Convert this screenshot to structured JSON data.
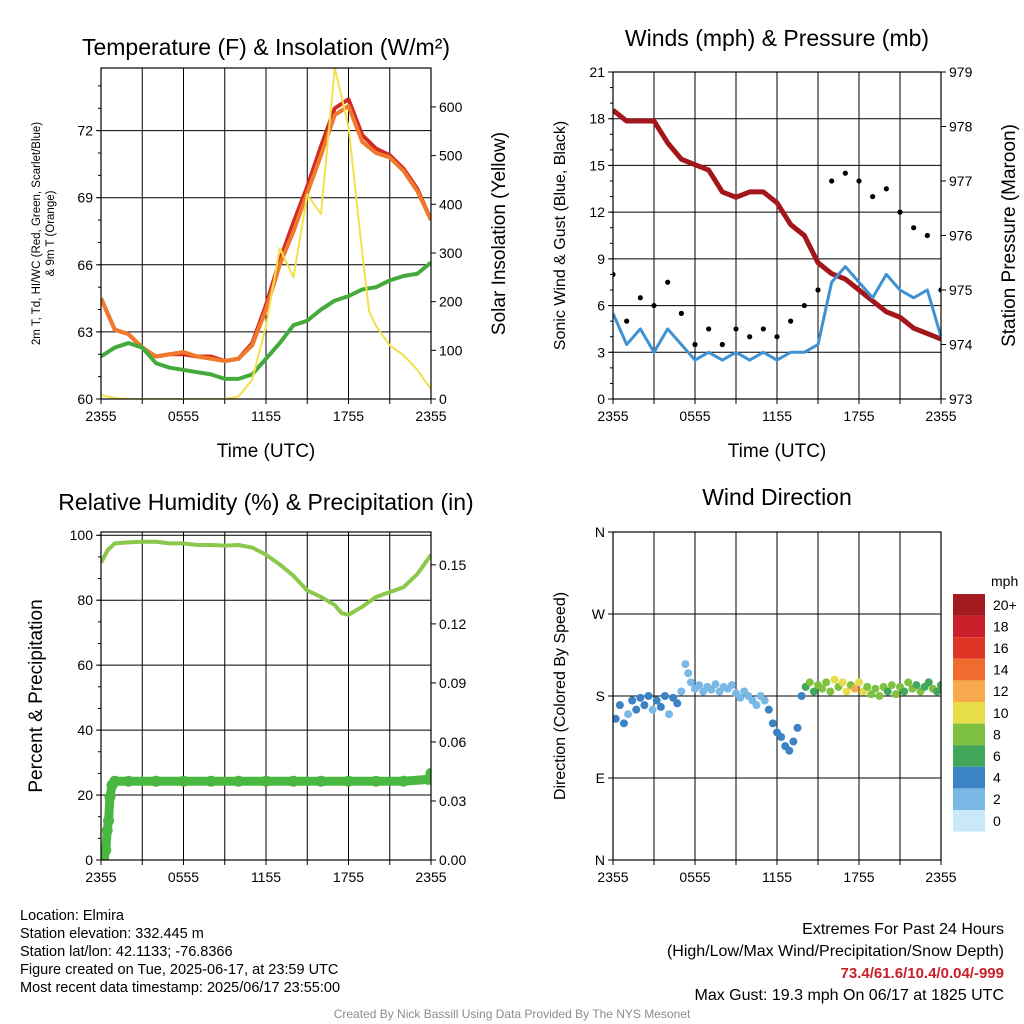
{
  "colors": {
    "red": "#d22b25",
    "orange": "#f07a2c",
    "green": "#44aa3c",
    "yellow": "#f4e04d",
    "maroon": "#a3161b",
    "wind_blue": "#3f92d1",
    "gust": "#000000",
    "rh_green": "#8cc84b",
    "precip_green": "#4ab840"
  },
  "chart_data": [
    {
      "type": "line",
      "title": "Temperature (F) & Insolation (W/m²)",
      "xlabel": "Time (UTC)",
      "ylabel_left": "2m T, Td, HI/WC (Red, Green, Scarlet/Blue) & 9m T (Orange)",
      "ylabel_right": "Solar Insolation (Yellow)",
      "x_ticks": [
        "2355",
        "0555",
        "1155",
        "1755",
        "2355"
      ],
      "y_ticks_left": [
        "60",
        "63",
        "66",
        "69",
        "72"
      ],
      "y_ticks_right": [
        "0",
        "100",
        "200",
        "300",
        "400",
        "500",
        "600"
      ],
      "ylim_left": [
        60,
        74.8
      ],
      "ylim_right": [
        0,
        680
      ],
      "grid": true,
      "series": [
        {
          "axis": "left",
          "color": "red",
          "x": [
            0,
            1,
            2,
            3,
            4,
            5,
            6,
            7,
            8,
            9,
            10,
            11,
            12,
            13,
            14,
            15,
            16,
            17,
            18,
            19,
            20,
            21,
            22,
            23,
            24
          ],
          "values": [
            64.5,
            63.1,
            62.9,
            62.3,
            61.9,
            62.0,
            62.0,
            61.9,
            61.9,
            61.7,
            61.8,
            62.5,
            64.2,
            66.2,
            67.9,
            69.5,
            71.3,
            73.0,
            73.4,
            71.8,
            71.2,
            70.9,
            70.3,
            69.4,
            68.0
          ]
        },
        {
          "axis": "left",
          "color": "orange",
          "x": [
            0,
            1,
            2,
            3,
            4,
            5,
            6,
            7,
            8,
            9,
            10,
            11,
            12,
            13,
            14,
            15,
            16,
            17,
            18,
            19,
            20,
            21,
            22,
            23,
            24
          ],
          "values": [
            64.5,
            63.1,
            62.9,
            62.3,
            61.9,
            62.0,
            62.1,
            61.9,
            61.8,
            61.7,
            61.8,
            62.4,
            64.0,
            66.0,
            67.5,
            69.2,
            70.9,
            72.7,
            73.1,
            71.5,
            71.0,
            70.8,
            70.2,
            69.3,
            68.0
          ]
        },
        {
          "axis": "left",
          "color": "green",
          "x": [
            0,
            1,
            2,
            3,
            4,
            5,
            6,
            7,
            8,
            9,
            10,
            11,
            12,
            13,
            14,
            15,
            16,
            17,
            18,
            19,
            20,
            21,
            22,
            23,
            24
          ],
          "values": [
            61.9,
            62.3,
            62.5,
            62.3,
            61.6,
            61.4,
            61.3,
            61.2,
            61.1,
            60.9,
            60.9,
            61.1,
            61.8,
            62.5,
            63.3,
            63.5,
            64.0,
            64.4,
            64.6,
            64.9,
            65.0,
            65.3,
            65.5,
            65.6,
            66.1
          ]
        },
        {
          "axis": "right",
          "color": "yellow",
          "x": [
            0,
            1,
            2,
            3,
            4,
            5,
            6,
            7,
            8,
            9,
            10,
            11,
            12,
            13,
            14,
            15,
            16,
            17,
            17.5,
            18,
            19,
            19.5,
            20,
            21,
            22,
            23,
            24
          ],
          "values": [
            8,
            2,
            0,
            0,
            0,
            0,
            0,
            0,
            0,
            0,
            5,
            40,
            150,
            310,
            250,
            420,
            380,
            680,
            620,
            560,
            300,
            180,
            150,
            110,
            90,
            60,
            20
          ]
        }
      ]
    },
    {
      "type": "line",
      "title": "Winds (mph) & Pressure (mb)",
      "xlabel": "Time (UTC)",
      "ylabel_left": "Sonic Wind & Gust (Blue, Black)",
      "ylabel_right": "Station Pressure (Maroon)",
      "x_ticks": [
        "2355",
        "0555",
        "1155",
        "1755",
        "2355"
      ],
      "y_ticks_left": [
        "0",
        "3",
        "6",
        "9",
        "12",
        "15",
        "18",
        "21"
      ],
      "y_ticks_right": [
        "973",
        "974",
        "975",
        "976",
        "977",
        "978",
        "979"
      ],
      "ylim_left": [
        0,
        21
      ],
      "ylim_right": [
        973,
        979
      ],
      "grid": true,
      "series": [
        {
          "axis": "right",
          "color": "maroon",
          "x": [
            0,
            1,
            2,
            3,
            4,
            5,
            6,
            7,
            8,
            9,
            10,
            11,
            12,
            13,
            14,
            15,
            16,
            17,
            18,
            19,
            20,
            21,
            22,
            23,
            24
          ],
          "values": [
            978.3,
            978.1,
            978.1,
            978.1,
            977.7,
            977.4,
            977.3,
            977.2,
            976.8,
            976.7,
            976.8,
            976.8,
            976.6,
            976.2,
            976.0,
            975.5,
            975.3,
            975.2,
            975.0,
            974.8,
            974.6,
            974.5,
            974.3,
            974.2,
            974.1
          ]
        },
        {
          "axis": "left",
          "color": "wind_blue",
          "x": [
            0,
            1,
            2,
            3,
            4,
            5,
            6,
            7,
            8,
            9,
            10,
            11,
            12,
            13,
            14,
            15,
            16,
            17,
            18,
            19,
            20,
            21,
            22,
            23,
            24
          ],
          "values": [
            5.5,
            3.5,
            4.5,
            3.0,
            4.5,
            3.5,
            2.5,
            3.0,
            2.5,
            3.0,
            2.5,
            3.0,
            2.5,
            3.0,
            3.0,
            3.5,
            7.5,
            8.5,
            7.5,
            6.5,
            8.0,
            7.0,
            6.5,
            7.0,
            4.0
          ]
        },
        {
          "axis": "left",
          "color": "gust",
          "x": [
            0,
            1,
            2,
            3,
            4,
            5,
            6,
            7,
            8,
            9,
            10,
            11,
            12,
            13,
            14,
            15,
            16,
            17,
            18,
            19,
            20,
            21,
            22,
            23,
            24
          ],
          "values": [
            8.0,
            5.0,
            6.5,
            6.0,
            7.5,
            5.5,
            3.5,
            4.5,
            3.5,
            4.5,
            4.0,
            4.5,
            4.0,
            5.0,
            6.0,
            7.0,
            14.0,
            14.5,
            14.0,
            13.0,
            13.5,
            12.0,
            11.0,
            10.5,
            7.0
          ]
        }
      ]
    },
    {
      "type": "line",
      "title": "Relative Humidity (%) & Precipitation (in)",
      "ylabel_left": "Percent & Precipitation",
      "x_ticks": [
        "2355",
        "0555",
        "1155",
        "1755",
        "2355"
      ],
      "y_ticks_left": [
        "0",
        "20",
        "40",
        "60",
        "80",
        "100"
      ],
      "y_ticks_right": [
        "0.00",
        "0.03",
        "0.06",
        "0.09",
        "0.12",
        "0.15"
      ],
      "ylim_left": [
        0,
        101
      ],
      "ylim_right": [
        0,
        0.1667
      ],
      "grid": true,
      "series": [
        {
          "axis": "left",
          "color": "rh_green",
          "x": [
            0,
            0.5,
            1,
            2,
            3,
            4,
            5,
            6,
            7,
            8,
            9,
            10,
            11,
            12,
            13,
            14,
            15,
            16,
            17,
            17.5,
            18,
            19,
            20,
            21,
            22,
            23,
            24
          ],
          "values": [
            91.5,
            95.5,
            97.5,
            97.8,
            98.0,
            98.0,
            97.5,
            97.5,
            97.0,
            97.0,
            96.8,
            97.0,
            96.2,
            94.0,
            91.0,
            87.5,
            83.0,
            81.0,
            78.5,
            76.0,
            75.5,
            78.0,
            81.0,
            82.5,
            84.0,
            88.0,
            94.0
          ]
        },
        {
          "axis": "right",
          "color": "precip_green",
          "x": [
            0,
            0.2,
            0.35,
            0.45,
            0.55,
            0.65,
            0.8,
            1,
            2,
            4,
            6,
            8,
            10,
            12,
            14,
            16,
            18,
            20,
            22,
            23.8,
            24
          ],
          "values": [
            0.0,
            0.0,
            0.005,
            0.015,
            0.02,
            0.032,
            0.038,
            0.04,
            0.04,
            0.04,
            0.04,
            0.04,
            0.04,
            0.04,
            0.04,
            0.04,
            0.04,
            0.04,
            0.04,
            0.041,
            0.044
          ]
        }
      ]
    },
    {
      "type": "scatter",
      "title": "Wind Direction",
      "ylabel_left": "Direction (Colored By Speed)",
      "x_ticks": [
        "2355",
        "0555",
        "1155",
        "1755",
        "2355"
      ],
      "y_ticks_left": [
        "N",
        "E",
        "S",
        "W",
        "N"
      ],
      "ylim_left": [
        0,
        360
      ],
      "grid": true,
      "legend": {
        "title": "mph",
        "placement": "right",
        "labels": [
          "20+",
          "18",
          "16",
          "14",
          "12",
          "10",
          "8",
          "6",
          "4",
          "2",
          "0"
        ],
        "colors": [
          "#a31a1f",
          "#c8202b",
          "#de3426",
          "#ef6c2e",
          "#f9a94d",
          "#e8de4a",
          "#7fc241",
          "#42a65b",
          "#3c83c4",
          "#7ab8e6",
          "#c9e8f8"
        ]
      },
      "points": [
        {
          "x": 0.2,
          "dir": 155,
          "speed": 3
        },
        {
          "x": 0.5,
          "dir": 170,
          "speed": 4
        },
        {
          "x": 0.8,
          "dir": 150,
          "speed": 3
        },
        {
          "x": 1.1,
          "dir": 160,
          "speed": 2
        },
        {
          "x": 1.4,
          "dir": 175,
          "speed": 4
        },
        {
          "x": 1.7,
          "dir": 165,
          "speed": 3
        },
        {
          "x": 2.0,
          "dir": 178,
          "speed": 4
        },
        {
          "x": 2.3,
          "dir": 170,
          "speed": 3
        },
        {
          "x": 2.6,
          "dir": 180,
          "speed": 4
        },
        {
          "x": 2.9,
          "dir": 165,
          "speed": 2
        },
        {
          "x": 3.2,
          "dir": 175,
          "speed": 4
        },
        {
          "x": 3.5,
          "dir": 168,
          "speed": 3
        },
        {
          "x": 3.8,
          "dir": 180,
          "speed": 4
        },
        {
          "x": 4.1,
          "dir": 160,
          "speed": 2
        },
        {
          "x": 4.4,
          "dir": 178,
          "speed": 3
        },
        {
          "x": 4.7,
          "dir": 172,
          "speed": 4
        },
        {
          "x": 5.0,
          "dir": 185,
          "speed": 2
        },
        {
          "x": 5.3,
          "dir": 215,
          "speed": 1
        },
        {
          "x": 5.5,
          "dir": 205,
          "speed": 2
        },
        {
          "x": 5.7,
          "dir": 195,
          "speed": 2
        },
        {
          "x": 6.0,
          "dir": 188,
          "speed": 2
        },
        {
          "x": 6.3,
          "dir": 192,
          "speed": 2
        },
        {
          "x": 6.6,
          "dir": 185,
          "speed": 2
        },
        {
          "x": 6.9,
          "dir": 190,
          "speed": 2
        },
        {
          "x": 7.2,
          "dir": 187,
          "speed": 2
        },
        {
          "x": 7.5,
          "dir": 193,
          "speed": 2
        },
        {
          "x": 7.8,
          "dir": 185,
          "speed": 2
        },
        {
          "x": 8.1,
          "dir": 190,
          "speed": 2
        },
        {
          "x": 8.4,
          "dir": 188,
          "speed": 2
        },
        {
          "x": 8.7,
          "dir": 192,
          "speed": 2
        },
        {
          "x": 9.0,
          "dir": 183,
          "speed": 2
        },
        {
          "x": 9.3,
          "dir": 178,
          "speed": 2
        },
        {
          "x": 9.6,
          "dir": 185,
          "speed": 2
        },
        {
          "x": 9.9,
          "dir": 180,
          "speed": 2
        },
        {
          "x": 10.2,
          "dir": 175,
          "speed": 2
        },
        {
          "x": 10.5,
          "dir": 170,
          "speed": 2
        },
        {
          "x": 10.8,
          "dir": 180,
          "speed": 2
        },
        {
          "x": 11.1,
          "dir": 175,
          "speed": 2
        },
        {
          "x": 11.4,
          "dir": 165,
          "speed": 3
        },
        {
          "x": 11.7,
          "dir": 150,
          "speed": 3
        },
        {
          "x": 12.0,
          "dir": 140,
          "speed": 3
        },
        {
          "x": 12.3,
          "dir": 135,
          "speed": 4
        },
        {
          "x": 12.6,
          "dir": 125,
          "speed": 4
        },
        {
          "x": 12.9,
          "dir": 120,
          "speed": 4
        },
        {
          "x": 13.2,
          "dir": 130,
          "speed": 3
        },
        {
          "x": 13.5,
          "dir": 145,
          "speed": 4
        },
        {
          "x": 13.8,
          "dir": 180,
          "speed": 3
        },
        {
          "x": 14.1,
          "dir": 190,
          "speed": 5
        },
        {
          "x": 14.4,
          "dir": 195,
          "speed": 7
        },
        {
          "x": 14.7,
          "dir": 185,
          "speed": 6
        },
        {
          "x": 15.0,
          "dir": 192,
          "speed": 7
        },
        {
          "x": 15.3,
          "dir": 188,
          "speed": 8
        },
        {
          "x": 15.6,
          "dir": 195,
          "speed": 8
        },
        {
          "x": 15.9,
          "dir": 185,
          "speed": 7
        },
        {
          "x": 16.2,
          "dir": 198,
          "speed": 9
        },
        {
          "x": 16.5,
          "dir": 190,
          "speed": 8
        },
        {
          "x": 16.8,
          "dir": 195,
          "speed": 10
        },
        {
          "x": 17.1,
          "dir": 185,
          "speed": 9
        },
        {
          "x": 17.4,
          "dir": 192,
          "speed": 8
        },
        {
          "x": 17.7,
          "dir": 188,
          "speed": 11
        },
        {
          "x": 18.0,
          "dir": 195,
          "speed": 10
        },
        {
          "x": 18.3,
          "dir": 185,
          "speed": 9
        },
        {
          "x": 18.6,
          "dir": 190,
          "speed": 8
        },
        {
          "x": 18.9,
          "dir": 182,
          "speed": 7
        },
        {
          "x": 19.2,
          "dir": 188,
          "speed": 8
        },
        {
          "x": 19.5,
          "dir": 180,
          "speed": 7
        },
        {
          "x": 19.8,
          "dir": 190,
          "speed": 8
        },
        {
          "x": 20.1,
          "dir": 185,
          "speed": 6
        },
        {
          "x": 20.4,
          "dir": 192,
          "speed": 8
        },
        {
          "x": 20.7,
          "dir": 182,
          "speed": 7
        },
        {
          "x": 21.0,
          "dir": 190,
          "speed": 8
        },
        {
          "x": 21.3,
          "dir": 185,
          "speed": 6
        },
        {
          "x": 21.6,
          "dir": 195,
          "speed": 7
        },
        {
          "x": 21.9,
          "dir": 188,
          "speed": 8
        },
        {
          "x": 22.2,
          "dir": 192,
          "speed": 6
        },
        {
          "x": 22.5,
          "dir": 185,
          "speed": 7
        },
        {
          "x": 22.8,
          "dir": 190,
          "speed": 5
        },
        {
          "x": 23.1,
          "dir": 195,
          "speed": 6
        },
        {
          "x": 23.4,
          "dir": 188,
          "speed": 7
        },
        {
          "x": 23.7,
          "dir": 185,
          "speed": 5
        },
        {
          "x": 24.0,
          "dir": 192,
          "speed": 6
        }
      ]
    }
  ],
  "footer": {
    "location": "Location: Elmira",
    "elevation": "Station elevation: 332.445 m",
    "latlon": "Station lat/lon: 42.1133; -76.8366",
    "created": "Figure created on Tue, 2025-06-17, at 23:59 UTC",
    "recent": "Most recent data timestamp: 2025/06/17 23:55:00",
    "extremes_title": "Extremes For Past 24 Hours",
    "extremes_subtitle": "(High/Low/Max Wind/Precipitation/Snow Depth)",
    "extremes_values": "73.4/61.6/10.4/0.04/-999",
    "max_gust": "Max Gust: 19.3 mph On 06/17 at 1825 UTC",
    "credit": "Created By Nick Bassill Using Data Provided By The NYS Mesonet"
  }
}
